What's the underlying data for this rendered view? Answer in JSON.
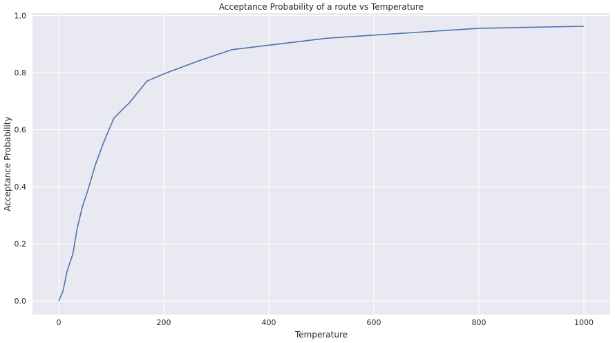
{
  "chart_data": {
    "type": "line",
    "title": "Acceptance Probability of a route vs Temperature",
    "xlabel": "Temperature",
    "ylabel": "Acceptance Probability",
    "xlim": [
      -50,
      1050
    ],
    "ylim": [
      -0.048,
      1.008
    ],
    "xticks": [
      0,
      200,
      400,
      600,
      800,
      1000
    ],
    "xtick_labels": [
      "0",
      "200",
      "400",
      "600",
      "800",
      "1000"
    ],
    "yticks": [
      0.0,
      0.2,
      0.4,
      0.6,
      0.8,
      1.0
    ],
    "ytick_labels": [
      "0.0",
      "0.2",
      "0.4",
      "0.6",
      "0.8",
      "1.0"
    ],
    "grid": true,
    "background": "#e9e9f1",
    "grid_color": "#ffffff",
    "series": [
      {
        "color": "#4c72b0",
        "x": [
          0,
          8,
          16,
          27,
          35,
          45,
          55,
          70,
          85,
          105,
          135,
          168,
          200,
          265,
          330,
          510,
          800,
          1000
        ],
        "y": [
          0.0,
          0.034,
          0.105,
          0.165,
          0.253,
          0.33,
          0.385,
          0.478,
          0.553,
          0.64,
          0.695,
          0.77,
          0.795,
          0.84,
          0.88,
          0.92,
          0.955,
          0.962
        ]
      }
    ]
  }
}
